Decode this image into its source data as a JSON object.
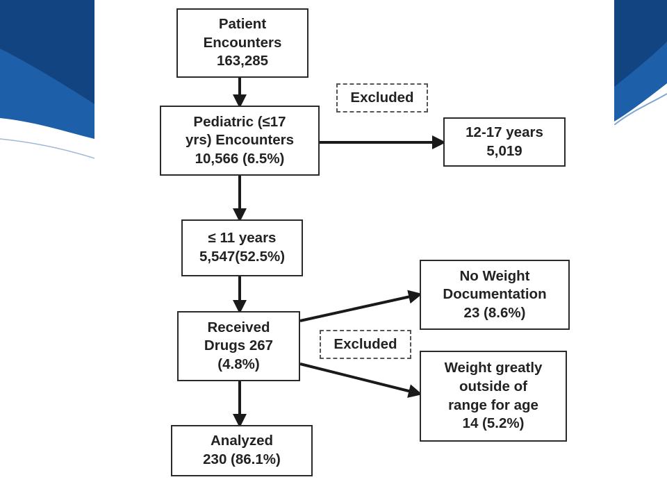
{
  "theme": {
    "accent_blue": "#1d5fa8",
    "accent_dark_blue": "#0f3f7a",
    "border_color": "#2a2a2a",
    "text_color": "#222222"
  },
  "flowchart": {
    "patient_encounters": "Patient\nEncounters\n163,285",
    "pediatric_encounters": "Pediatric (≤17\nyrs) Encounters\n10,566 (6.5%)",
    "under_11_years": "≤ 11 years\n5,547(52.5%)",
    "received_drugs": "Received\nDrugs 267\n(4.8%)",
    "analyzed": "Analyzed\n230 (86.1%)",
    "excluded_12_17": "12-17 years\n5,019",
    "no_weight_documentation": "No Weight\nDocumentation\n23  (8.6%)",
    "weight_outside_range": "Weight greatly\noutside of\nrange for age\n14 (5.2%)",
    "excluded_label_top": "Excluded",
    "excluded_label_bottom": "Excluded"
  }
}
